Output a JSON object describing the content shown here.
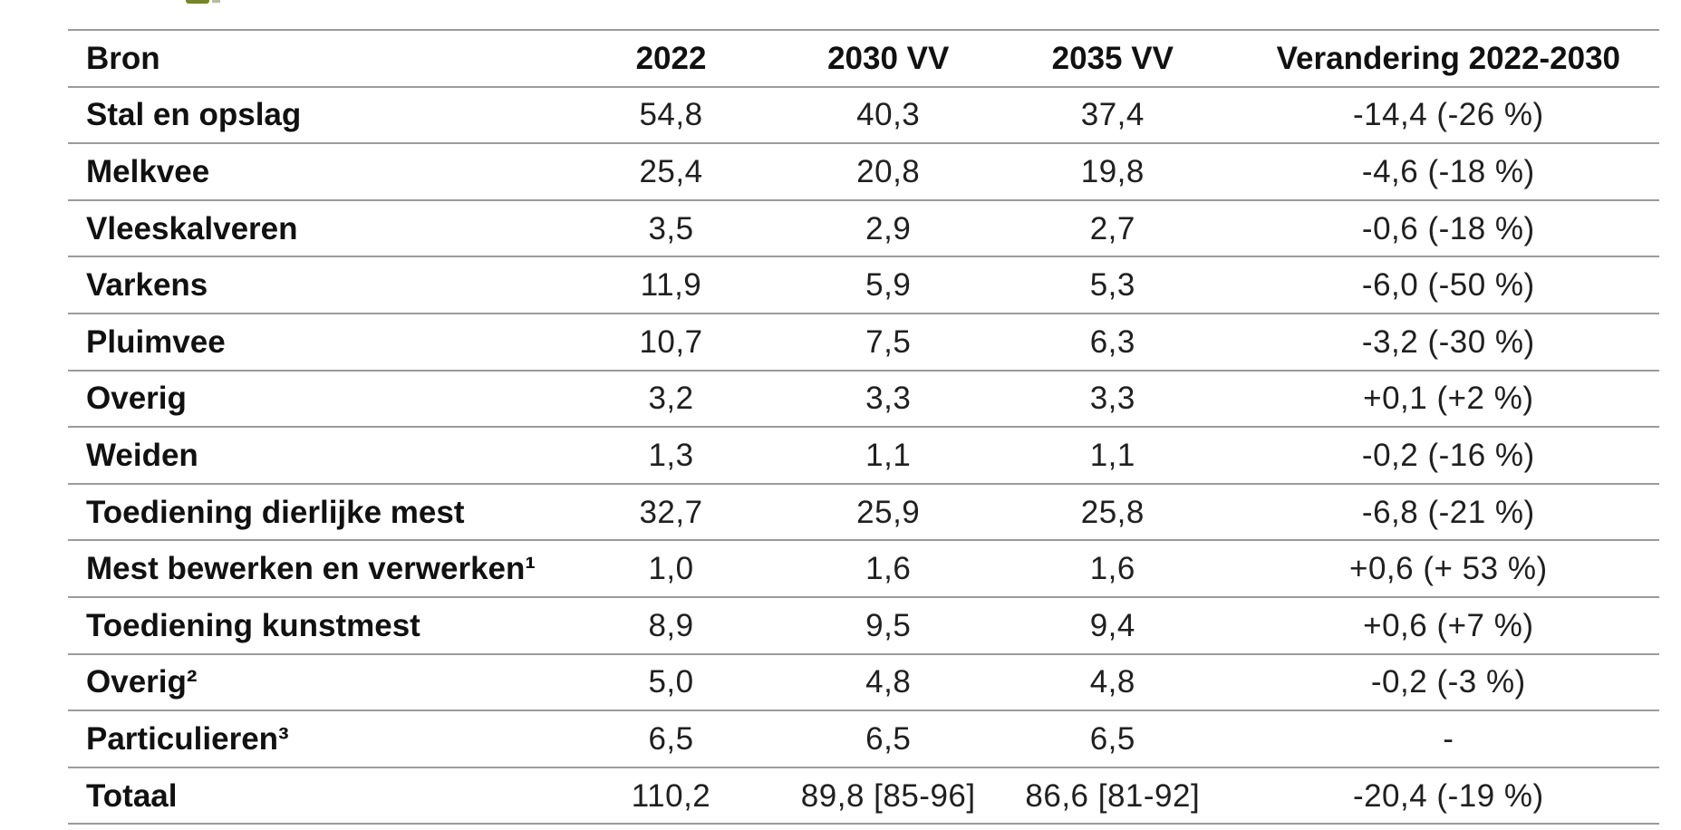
{
  "page": {
    "background_color": "#ffffff",
    "text_color": "#1c1c1c",
    "rule_color": "#9b9b9b",
    "cropped_green_fragment_color": "#76842e"
  },
  "table": {
    "columns": [
      {
        "key": "bron",
        "label": "Bron",
        "align": "left"
      },
      {
        "key": "y2022",
        "label": "2022",
        "align": "center"
      },
      {
        "key": "y2030vv",
        "label": "2030 VV",
        "align": "center"
      },
      {
        "key": "y2035vv",
        "label": "2035 VV",
        "align": "center"
      },
      {
        "key": "verandering",
        "label": "Verandering 2022-2030",
        "align": "center"
      }
    ],
    "rows": [
      {
        "is_total": false,
        "cells": [
          "Stal en opslag",
          "54,8",
          "40,3",
          "37,4",
          "-14,4 (-26 %)"
        ]
      },
      {
        "is_total": false,
        "cells": [
          "Melkvee",
          "25,4",
          "20,8",
          "19,8",
          "-4,6 (-18 %)"
        ]
      },
      {
        "is_total": false,
        "cells": [
          "Vleeskalveren",
          "3,5",
          "2,9",
          "2,7",
          "-0,6 (-18 %)"
        ]
      },
      {
        "is_total": false,
        "cells": [
          "Varkens",
          "11,9",
          "5,9",
          "5,3",
          "-6,0 (-50 %)"
        ]
      },
      {
        "is_total": false,
        "cells": [
          "Pluimvee",
          "10,7",
          "7,5",
          "6,3",
          "-3,2 (-30 %)"
        ]
      },
      {
        "is_total": false,
        "cells": [
          "Overig",
          "3,2",
          "3,3",
          "3,3",
          "+0,1 (+2 %)"
        ]
      },
      {
        "is_total": false,
        "cells": [
          "Weiden",
          "1,3",
          "1,1",
          "1,1",
          "-0,2 (-16 %)"
        ]
      },
      {
        "is_total": false,
        "cells": [
          "Toediening dierlijke mest",
          "32,7",
          "25,9",
          "25,8",
          "-6,8 (-21 %)"
        ]
      },
      {
        "is_total": false,
        "cells": [
          "Mest bewerken en verwerken¹",
          "1,0",
          "1,6",
          "1,6",
          "+0,6 (+ 53 %)"
        ]
      },
      {
        "is_total": false,
        "cells": [
          "Toediening kunstmest",
          "8,9",
          "9,5",
          "9,4",
          "+0,6 (+7 %)"
        ]
      },
      {
        "is_total": false,
        "cells": [
          "Overig²",
          "5,0",
          "4,8",
          "4,8",
          "-0,2 (-3 %)"
        ]
      },
      {
        "is_total": false,
        "cells": [
          "Particulieren³",
          "6,5",
          "6,5",
          "6,5",
          "-"
        ]
      },
      {
        "is_total": true,
        "cells": [
          "Totaal",
          "110,2",
          "89,8 [85-96]",
          "86,6 [81-92]",
          "-20,4 (-19 %)"
        ]
      }
    ]
  }
}
